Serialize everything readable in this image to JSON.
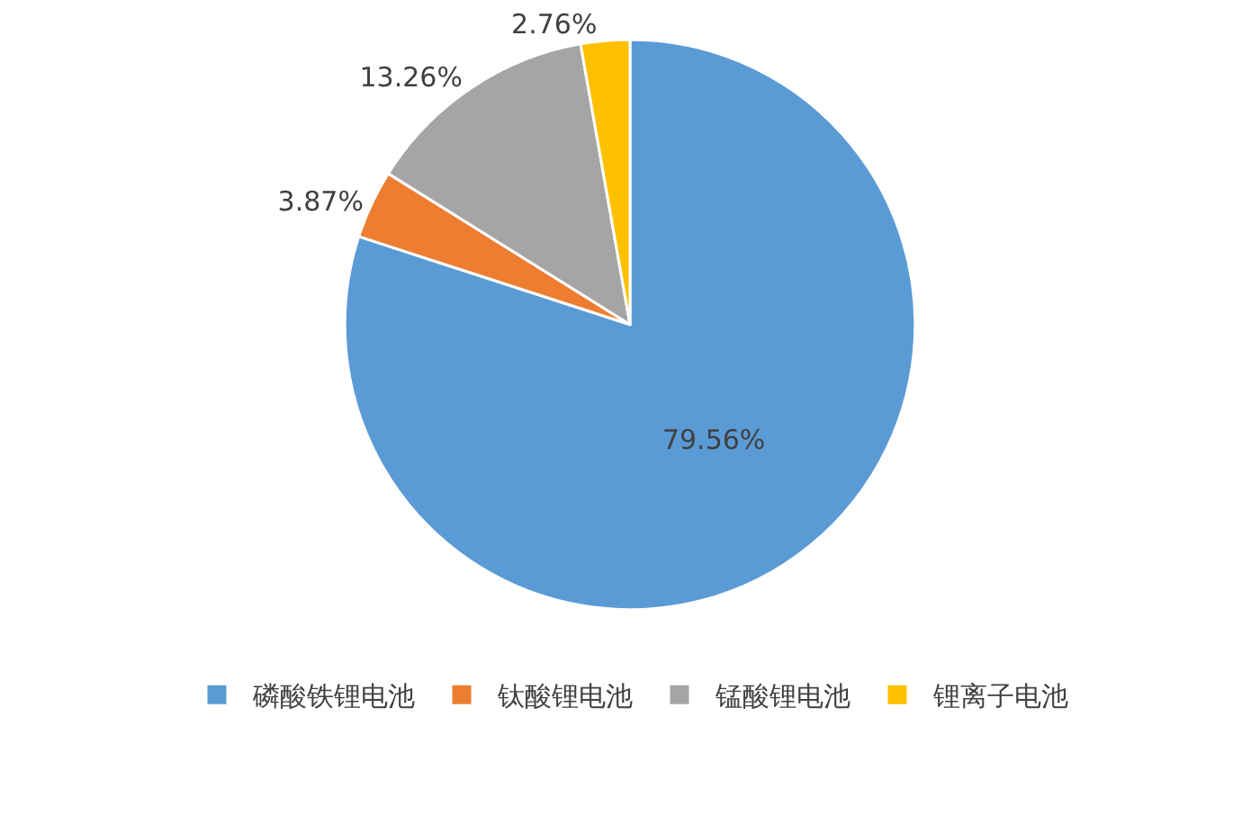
{
  "chart_data": {
    "type": "pie",
    "categories": [
      "磷酸铁锂电池",
      "钛酸锂电池",
      "锰酸锂电池",
      "锂离子电池"
    ],
    "values": [
      79.56,
      3.87,
      13.26,
      2.76
    ],
    "colors": [
      "#5b9bd5",
      "#ed7d31",
      "#a5a5a5",
      "#ffc000"
    ],
    "value_labels": [
      "79.56%",
      "3.87%",
      "13.26%",
      "2.76%"
    ],
    "legend": "bottom"
  }
}
